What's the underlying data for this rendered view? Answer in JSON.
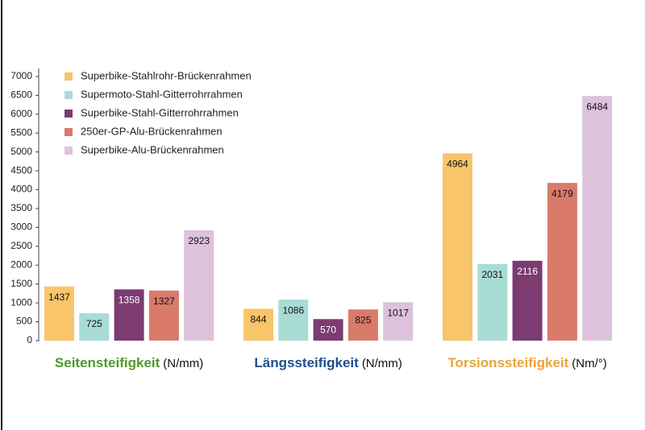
{
  "chart_data": {
    "type": "bar",
    "categories": [
      "Seitensteifigkeit",
      "Längssteifigkeit",
      "Torsionssteifigkeit"
    ],
    "category_units": [
      "(N/mm)",
      "(N/mm)",
      "(Nm/°)"
    ],
    "category_colors": [
      "#4f9a2b",
      "#1e4f8e",
      "#eaa33a"
    ],
    "series": [
      {
        "name": "Superbike-Stahlrohr-Brückenrahmen",
        "color": "#f8c56b",
        "values": [
          1437,
          844,
          4964
        ]
      },
      {
        "name": "Supermoto-Stahl-Gitterrohrrahmen",
        "color": "#a9dcd5",
        "values": [
          725,
          1086,
          2031
        ]
      },
      {
        "name": "Superbike-Stahl-Gitterrohrrahmen",
        "color": "#7c3b71",
        "values": [
          1358,
          570,
          2116
        ]
      },
      {
        "name": "250er-GP-Alu-Brückenrahmen",
        "color": "#d97a6a",
        "values": [
          1327,
          825,
          4179
        ]
      },
      {
        "name": "Superbike-Alu-Brückenrahmen",
        "color": "#ddc2dd",
        "values": [
          2923,
          1017,
          6484
        ]
      }
    ],
    "ylim": [
      0,
      7000
    ],
    "yticks": [
      0,
      500,
      1000,
      1500,
      2000,
      2500,
      3000,
      3500,
      4000,
      4500,
      5000,
      5500,
      6000,
      6500,
      7000
    ],
    "legend": "top-left"
  }
}
